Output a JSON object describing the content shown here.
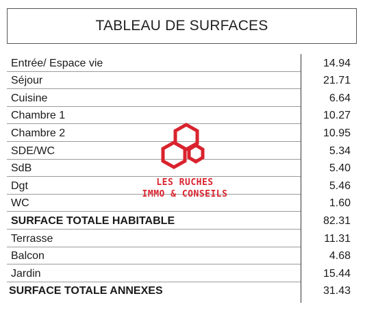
{
  "title": "TABLEAU DE SURFACES",
  "rows": [
    {
      "label": "Entrée/ Espace vie",
      "value": "14.94"
    },
    {
      "label": "Séjour",
      "value": "21.71"
    },
    {
      "label": "Cuisine",
      "value": "6.64"
    },
    {
      "label": "Chambre 1",
      "value": "10.27"
    },
    {
      "label": "Chambre 2",
      "value": "10.95"
    },
    {
      "label": "SDE/WC",
      "value": "5.34"
    },
    {
      "label": "SdB",
      "value": "5.40"
    },
    {
      "label": "Dgt",
      "value": "5.46"
    },
    {
      "label": "WC",
      "value": "1.60"
    },
    {
      "label": "SURFACE TOTALE HABITABLE",
      "value": "82.31"
    },
    {
      "label": "Terrasse",
      "value": "11.31"
    },
    {
      "label": "Balcon",
      "value": "4.68"
    },
    {
      "label": "Jardin",
      "value": "15.44"
    },
    {
      "label": "SURFACE TOTALE ANNEXES",
      "value": "31.43"
    }
  ],
  "watermark": {
    "line1": "LES RUCHES",
    "line2": "IMMO & CONSEILS",
    "color": "#d9232e",
    "icon": "hexagon-logo-icon"
  }
}
